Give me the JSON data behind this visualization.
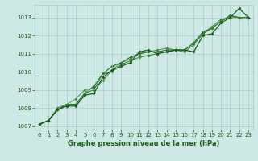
{
  "title": "Graphe pression niveau de la mer (hPa)",
  "background_color": "#cde8e5",
  "grid_color": "#aaccca",
  "line_color_dark": "#1a5c1a",
  "line_color_mid": "#2d7a2d",
  "hours": [
    0,
    1,
    2,
    3,
    4,
    5,
    6,
    7,
    8,
    9,
    10,
    11,
    12,
    13,
    14,
    15,
    16,
    17,
    18,
    19,
    20,
    21,
    22,
    23
  ],
  "series": [
    [
      1007.1,
      1007.3,
      1007.9,
      1008.1,
      1008.1,
      1008.7,
      1008.8,
      1009.7,
      1010.1,
      1010.3,
      1010.5,
      1011.1,
      1011.2,
      1011.0,
      1011.1,
      1011.2,
      1011.2,
      1011.1,
      1012.0,
      1012.1,
      1012.7,
      1013.0,
      1013.5,
      1013.0
    ],
    [
      1007.1,
      1007.3,
      1007.9,
      1008.1,
      1008.2,
      1008.8,
      1009.0,
      1009.9,
      1010.0,
      1010.4,
      1010.6,
      1010.8,
      1010.9,
      1011.0,
      1011.1,
      1011.2,
      1011.1,
      1011.5,
      1012.1,
      1012.4,
      1012.8,
      1013.1,
      1013.0,
      1013.0
    ],
    [
      1007.1,
      1007.3,
      1008.0,
      1008.2,
      1008.5,
      1009.0,
      1009.1,
      1009.5,
      1010.1,
      1010.5,
      1010.7,
      1011.0,
      1011.1,
      1011.2,
      1011.3,
      1011.2,
      1011.2,
      1011.6,
      1012.1,
      1012.5,
      1012.9,
      1013.0,
      1013.0,
      1013.0
    ],
    [
      1007.1,
      1007.3,
      1007.9,
      1008.2,
      1008.2,
      1008.8,
      1009.2,
      1009.9,
      1010.3,
      1010.5,
      1010.8,
      1011.0,
      1011.1,
      1011.1,
      1011.2,
      1011.2,
      1011.2,
      1011.6,
      1012.2,
      1012.4,
      1012.8,
      1013.1,
      1013.0,
      1013.0
    ]
  ],
  "ylim": [
    1006.8,
    1013.7
  ],
  "yticks": [
    1007,
    1008,
    1009,
    1010,
    1011,
    1012,
    1013
  ],
  "xlim": [
    -0.5,
    23.5
  ],
  "xticks": [
    0,
    1,
    2,
    3,
    4,
    5,
    6,
    7,
    8,
    9,
    10,
    11,
    12,
    13,
    14,
    15,
    16,
    17,
    18,
    19,
    20,
    21,
    22,
    23
  ],
  "marker": "D",
  "marker_size": 2.0,
  "linewidth": 0.8,
  "title_fontsize": 6.0,
  "tick_fontsize": 5.0
}
